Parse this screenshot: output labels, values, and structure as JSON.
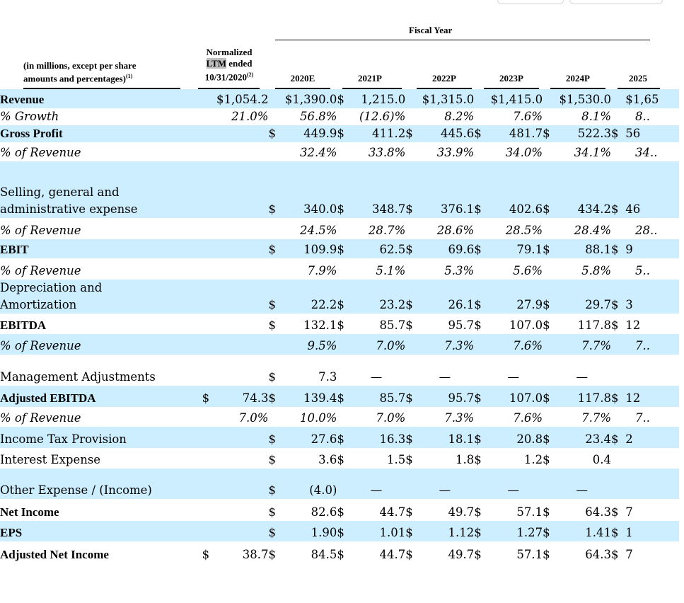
{
  "header": {
    "fiscal_year": "Fiscal Year",
    "label_line1": "(in millions, except per share",
    "label_line2": "amounts and percentages)",
    "label_sup": "(1)",
    "ltm_line1": "Normalized",
    "ltm_line2_hl": "LTM",
    "ltm_line2_rest": " ended",
    "ltm_line3": "10/31/2020",
    "ltm_sup": "(2)",
    "years": [
      "2020E",
      "2021P",
      "2022P",
      "2023P",
      "2024P",
      "2025"
    ]
  },
  "rows": [
    {
      "label": "Revenue",
      "style": "bold",
      "shade": true,
      "kind": "money",
      "cells": [
        [
          "",
          "$1,054.2"
        ],
        [
          "",
          "$1,390.0"
        ],
        [
          "$",
          "1,215.0"
        ],
        [
          "",
          "$1,315.0"
        ],
        [
          "",
          "$1,415.0"
        ],
        [
          "",
          "$1,530.0"
        ],
        [
          "",
          "$1,65"
        ]
      ]
    },
    {
      "label": "% Growth",
      "style": "ital",
      "shade": false,
      "kind": "pct",
      "cells": [
        "21.0%",
        "56.8%",
        "(12.6)%",
        "8.2%",
        "7.6%",
        "8.1%",
        "8.."
      ]
    },
    {
      "label": "Gross Profit",
      "style": "bold",
      "shade": true,
      "kind": "money",
      "cells": [
        [
          "",
          ""
        ],
        [
          "$",
          "449.9"
        ],
        [
          "$",
          "411.2"
        ],
        [
          "$",
          "445.6"
        ],
        [
          "$",
          "481.7"
        ],
        [
          "$",
          "522.3"
        ],
        [
          "$",
          "56"
        ]
      ]
    },
    {
      "label": "% of Revenue",
      "style": "ital",
      "shade": false,
      "kind": "pct",
      "cells": [
        "",
        "32.4%",
        "33.8%",
        "33.9%",
        "34.0%",
        "34.1%",
        "34.."
      ]
    },
    {
      "label": "Selling, general and administrative expense",
      "style": "plain",
      "shade": true,
      "kind": "money",
      "cells": [
        [
          "",
          ""
        ],
        [
          "$",
          "340.0"
        ],
        [
          "$",
          "348.7"
        ],
        [
          "$",
          "376.1"
        ],
        [
          "$",
          "402.6"
        ],
        [
          "$",
          "434.2"
        ],
        [
          "$",
          "46"
        ]
      ]
    },
    {
      "label": "% of Revenue",
      "style": "ital",
      "shade": false,
      "kind": "pct",
      "cells": [
        "",
        "24.5%",
        "28.7%",
        "28.6%",
        "28.5%",
        "28.4%",
        "28.."
      ]
    },
    {
      "label": "EBIT",
      "style": "bold",
      "shade": true,
      "kind": "money",
      "cells": [
        [
          "",
          ""
        ],
        [
          "$",
          "109.9"
        ],
        [
          "$",
          "62.5"
        ],
        [
          "$",
          "69.6"
        ],
        [
          "$",
          "79.1"
        ],
        [
          "$",
          "88.1"
        ],
        [
          "$",
          "9"
        ]
      ]
    },
    {
      "label": "% of Revenue",
      "style": "ital",
      "shade": false,
      "kind": "pct",
      "cells": [
        "",
        "7.9%",
        "5.1%",
        "5.3%",
        "5.6%",
        "5.8%",
        "5.."
      ]
    },
    {
      "label": "Depreciation and Amortization",
      "style": "plain",
      "shade": true,
      "kind": "money",
      "cells": [
        [
          "",
          ""
        ],
        [
          "$",
          "22.2"
        ],
        [
          "$",
          "23.2"
        ],
        [
          "$",
          "26.1"
        ],
        [
          "$",
          "27.9"
        ],
        [
          "$",
          "29.7"
        ],
        [
          "$",
          "3"
        ]
      ]
    },
    {
      "label": "EBITDA",
      "style": "bold",
      "shade": false,
      "kind": "money",
      "cells": [
        [
          "",
          ""
        ],
        [
          "$",
          "132.1"
        ],
        [
          "$",
          "85.7"
        ],
        [
          "$",
          "95.7"
        ],
        [
          "$",
          "107.0"
        ],
        [
          "$",
          "117.8"
        ],
        [
          "$",
          "12"
        ]
      ]
    },
    {
      "label": "% of Revenue",
      "style": "ital",
      "shade": true,
      "kind": "pct",
      "cells": [
        "",
        "9.5%",
        "7.0%",
        "7.3%",
        "7.6%",
        "7.7%",
        "7.."
      ]
    },
    {
      "label": "Management Adjustments",
      "style": "plain",
      "shade": false,
      "kind": "money",
      "cells": [
        [
          "",
          ""
        ],
        [
          "$",
          "7.3"
        ],
        [
          "",
          "—"
        ],
        [
          "",
          "—"
        ],
        [
          "",
          "—"
        ],
        [
          "",
          "—"
        ],
        [
          "",
          ""
        ]
      ]
    },
    {
      "label": "Adjusted EBITDA",
      "style": "bold",
      "shade": true,
      "kind": "money",
      "cells": [
        [
          "$",
          "74.3"
        ],
        [
          "$",
          "139.4"
        ],
        [
          "$",
          "85.7"
        ],
        [
          "$",
          "95.7"
        ],
        [
          "$",
          "107.0"
        ],
        [
          "$",
          "117.8"
        ],
        [
          "$",
          "12"
        ]
      ]
    },
    {
      "label": "% of Revenue",
      "style": "ital",
      "shade": false,
      "kind": "pct",
      "cells": [
        "7.0%",
        "10.0%",
        "7.0%",
        "7.3%",
        "7.6%",
        "7.7%",
        "7.."
      ]
    },
    {
      "label": "Income Tax Provision",
      "style": "plain",
      "shade": true,
      "kind": "money",
      "cells": [
        [
          "",
          ""
        ],
        [
          "$",
          "27.6"
        ],
        [
          "$",
          "16.3"
        ],
        [
          "$",
          "18.1"
        ],
        [
          "$",
          "20.8"
        ],
        [
          "$",
          "23.4"
        ],
        [
          "$",
          "2"
        ]
      ]
    },
    {
      "label": "Interest Expense",
      "style": "plain",
      "shade": false,
      "kind": "money",
      "cells": [
        [
          "",
          ""
        ],
        [
          "$",
          "3.6"
        ],
        [
          "$",
          "1.5"
        ],
        [
          "$",
          "1.8"
        ],
        [
          "$",
          "1.2"
        ],
        [
          "$",
          "0.4"
        ],
        [
          "",
          ""
        ]
      ]
    },
    {
      "label": "Other Expense / (Income)",
      "style": "plain",
      "shade": true,
      "kind": "money",
      "cells": [
        [
          "",
          ""
        ],
        [
          "$",
          "(4.0)"
        ],
        [
          "",
          "—"
        ],
        [
          "",
          "—"
        ],
        [
          "",
          "—"
        ],
        [
          "",
          "—"
        ],
        [
          "",
          ""
        ]
      ]
    },
    {
      "label": "Net Income",
      "style": "bold",
      "shade": false,
      "kind": "money",
      "cells": [
        [
          "",
          ""
        ],
        [
          "$",
          "82.6"
        ],
        [
          "$",
          "44.7"
        ],
        [
          "$",
          "49.7"
        ],
        [
          "$",
          "57.1"
        ],
        [
          "$",
          "64.3"
        ],
        [
          "$",
          "7"
        ]
      ]
    },
    {
      "label": "EPS",
      "style": "bold",
      "shade": true,
      "kind": "money",
      "cells": [
        [
          "",
          ""
        ],
        [
          "$",
          "1.90"
        ],
        [
          "$",
          "1.01"
        ],
        [
          "$",
          "1.12"
        ],
        [
          "$",
          "1.27"
        ],
        [
          "$",
          "1.41"
        ],
        [
          "$",
          "1"
        ]
      ]
    },
    {
      "label": "Adjusted Net Income",
      "style": "bold",
      "shade": false,
      "kind": "money",
      "cells": [
        [
          "$",
          "38.7"
        ],
        [
          "$",
          "84.5"
        ],
        [
          "$",
          "44.7"
        ],
        [
          "$",
          "49.7"
        ],
        [
          "$",
          "57.1"
        ],
        [
          "$",
          "64.3"
        ],
        [
          "$",
          "7"
        ]
      ]
    }
  ]
}
